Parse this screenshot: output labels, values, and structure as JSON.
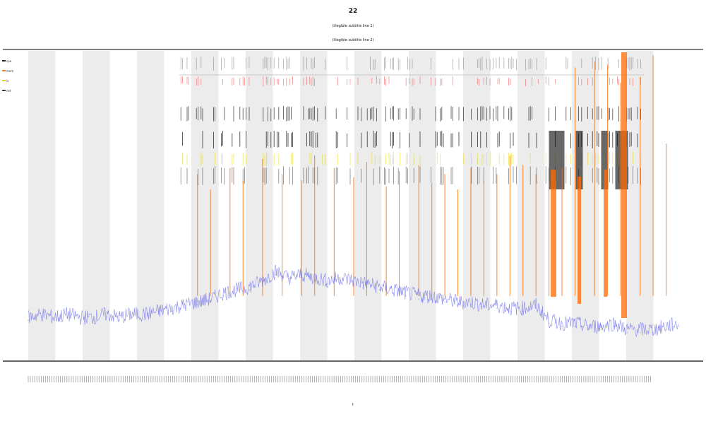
{
  "chart_data": {
    "type": "line",
    "title": "22",
    "subtitle_lines": [
      "(illegible subtitle line 1)",
      "(illegible subtitle line 2)"
    ],
    "xlabel": "t",
    "ylabel": "",
    "grid": false,
    "background_bands": "alternating light-gray vertical bands",
    "legend_placement": "top-left",
    "legend": [
      {
        "name": "cpu",
        "color": "#222222"
      },
      {
        "name": "mem",
        "color": "#ff7a1a"
      },
      {
        "name": "io",
        "color": "#e6d800"
      },
      {
        "name": "net",
        "color": "#3a3a3a"
      }
    ],
    "x_range": [
      0,
      1
    ],
    "y_range": [
      0,
      1
    ],
    "series": [
      {
        "name": "baseline",
        "color": "#6a6ae8",
        "x": [
          0.0,
          0.02,
          0.04,
          0.06,
          0.08,
          0.1,
          0.12,
          0.14,
          0.16,
          0.18,
          0.2,
          0.22,
          0.24,
          0.26,
          0.28,
          0.3,
          0.32,
          0.34,
          0.36,
          0.38,
          0.4,
          0.42,
          0.44,
          0.46,
          0.48,
          0.5,
          0.52,
          0.54,
          0.56,
          0.58,
          0.6,
          0.62,
          0.64,
          0.66,
          0.68,
          0.7,
          0.72,
          0.74,
          0.76,
          0.78,
          0.8,
          0.82,
          0.84,
          0.86,
          0.88,
          0.9,
          0.92,
          0.94,
          0.96,
          0.98,
          1.0
        ],
        "y": [
          0.12,
          0.13,
          0.12,
          0.13,
          0.12,
          0.12,
          0.13,
          0.12,
          0.13,
          0.13,
          0.14,
          0.15,
          0.16,
          0.17,
          0.18,
          0.2,
          0.21,
          0.22,
          0.24,
          0.27,
          0.25,
          0.26,
          0.25,
          0.24,
          0.25,
          0.24,
          0.23,
          0.22,
          0.21,
          0.2,
          0.19,
          0.19,
          0.18,
          0.17,
          0.17,
          0.16,
          0.16,
          0.15,
          0.15,
          0.16,
          0.11,
          0.1,
          0.1,
          0.09,
          0.09,
          0.1,
          0.08,
          0.08,
          0.08,
          0.09,
          0.1
        ]
      }
    ],
    "spike_series": {
      "name": "spikes",
      "color": "#ff6a00",
      "x": [
        0.26,
        0.28,
        0.31,
        0.33,
        0.36,
        0.39,
        0.42,
        0.44,
        0.47,
        0.5,
        0.52,
        0.55,
        0.57,
        0.6,
        0.62,
        0.64,
        0.66,
        0.68,
        0.7,
        0.72,
        0.74,
        0.76,
        0.78,
        0.8,
        0.82,
        0.84,
        0.87,
        0.89,
        0.91,
        0.94,
        0.96,
        0.98
      ],
      "y": [
        0.6,
        0.55,
        0.62,
        0.58,
        0.65,
        0.6,
        0.58,
        0.66,
        0.62,
        0.59,
        0.64,
        0.56,
        0.61,
        0.63,
        0.57,
        0.6,
        0.55,
        0.62,
        0.58,
        0.6,
        0.66,
        0.63,
        0.6,
        0.58,
        0.62,
        0.95,
        0.97,
        0.96,
        0.9,
        0.92,
        0.99,
        0.7
      ]
    }
  }
}
